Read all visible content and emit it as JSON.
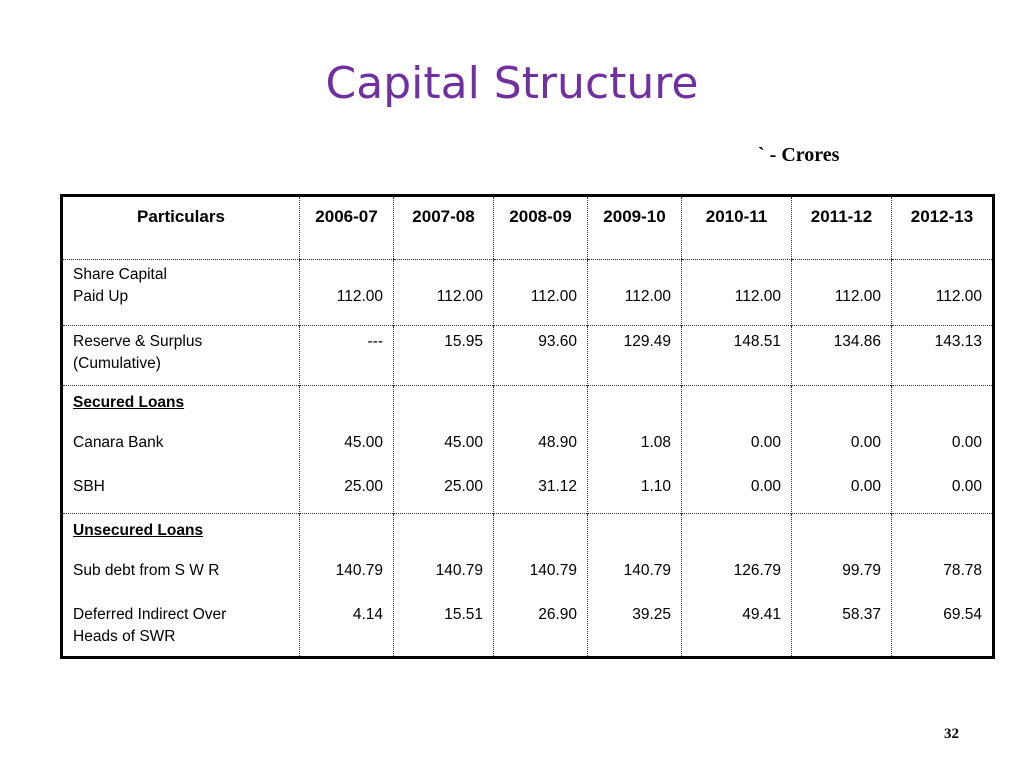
{
  "title": "Capital Structure",
  "unit_label": "` - Crores",
  "table": {
    "headers": [
      "Particulars",
      "2006-07",
      "2007-08",
      "2008-09",
      "2009-10",
      "2010-11",
      "2011-12",
      "2012-13"
    ],
    "share_capital": {
      "group_label": "Share Capital",
      "paid_up_label": "Paid Up",
      "paid_up_values": [
        "112.00",
        "112.00",
        "112.00",
        "112.00",
        "112.00",
        "112.00",
        "112.00"
      ]
    },
    "reserve": {
      "label_line1": "Reserve & Surplus",
      "label_line2": "(Cumulative)",
      "values": [
        "---",
        "15.95",
        "93.60",
        "129.49",
        "148.51",
        "134.86",
        "143.13"
      ]
    },
    "secured": {
      "heading": "Secured Loans",
      "canara_label": "Canara Bank",
      "canara_values": [
        "45.00",
        "45.00",
        "48.90",
        "1.08",
        "0.00",
        "0.00",
        "0.00"
      ],
      "sbh_label": "SBH",
      "sbh_values": [
        "25.00",
        "25.00",
        "31.12",
        "1.10",
        "0.00",
        "0.00",
        "0.00"
      ]
    },
    "unsecured": {
      "heading": "Unsecured Loans",
      "subdebt_label": "Sub debt from S W R",
      "subdebt_values": [
        "140.79",
        "140.79",
        "140.79",
        "140.79",
        "126.79",
        "99.79",
        "78.78"
      ],
      "deferred_label_line1": "Deferred Indirect  Over",
      "deferred_label_line2": "Heads of SWR",
      "deferred_values": [
        "4.14",
        "15.51",
        "26.90",
        "39.25",
        "49.41",
        "58.37",
        "69.54"
      ]
    }
  },
  "page_number": "32"
}
